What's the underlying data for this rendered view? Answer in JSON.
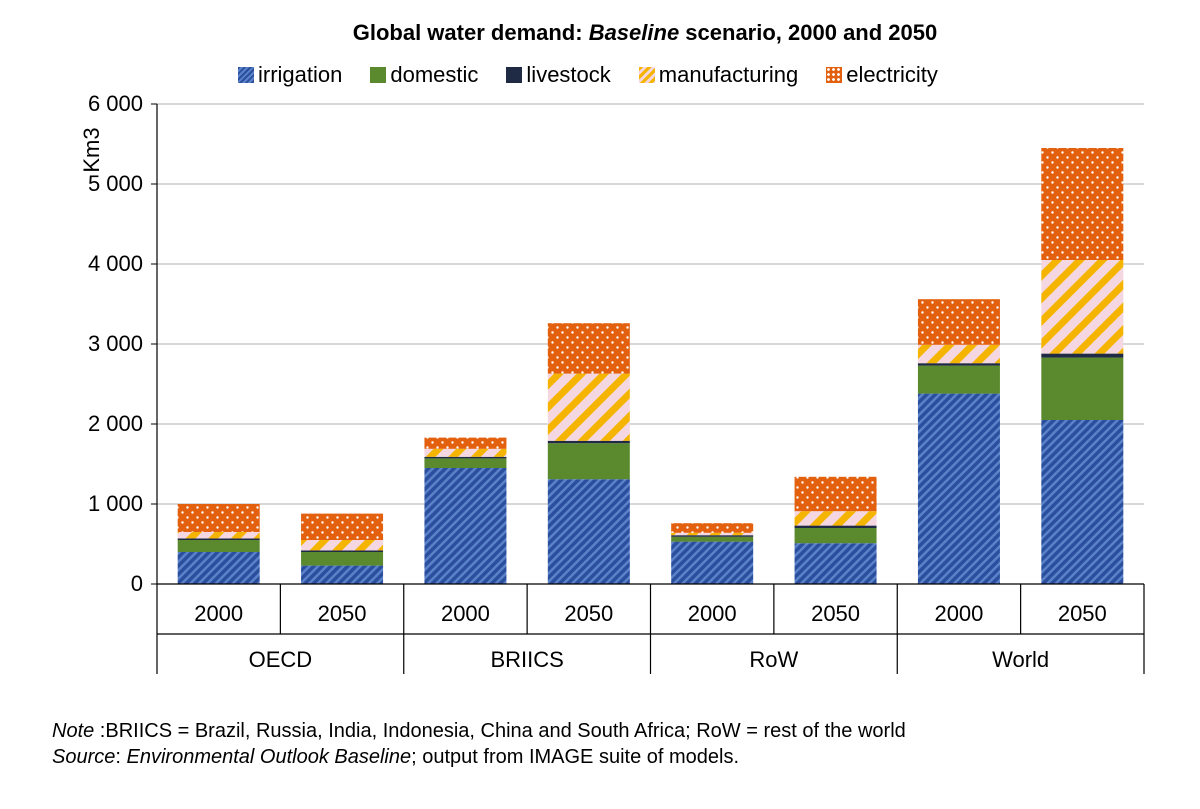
{
  "chart_data": {
    "type": "bar",
    "stacked": true,
    "title_parts": [
      "Global water demand: ",
      "Baseline",
      " scenario, 2000 and 2050"
    ],
    "ylabel": "Km3",
    "ylim": [
      0,
      6000
    ],
    "yticks": [
      0,
      1000,
      2000,
      3000,
      4000,
      5000,
      6000
    ],
    "ytick_labels": [
      "0",
      "1 000",
      "2 000",
      "3 000",
      "4 000",
      "5 000",
      "6 000"
    ],
    "grid": true,
    "legend_position": "top",
    "groups": [
      "OECD",
      "BRIICS",
      "RoW",
      "World"
    ],
    "categories": [
      "2000",
      "2050",
      "2000",
      "2050",
      "2000",
      "2050",
      "2000",
      "2050"
    ],
    "series": [
      {
        "name": "irrigation",
        "color": "#2b4f9e",
        "pattern": "diagonal-stripes",
        "values": [
          400,
          230,
          1450,
          1310,
          530,
          510,
          2380,
          2050
        ]
      },
      {
        "name": "domestic",
        "color": "#5b8a2e",
        "pattern": "solid",
        "values": [
          150,
          170,
          120,
          450,
          60,
          190,
          350,
          780
        ]
      },
      {
        "name": "livestock",
        "color": "#1f2a44",
        "pattern": "solid",
        "values": [
          20,
          20,
          20,
          30,
          20,
          30,
          30,
          50
        ]
      },
      {
        "name": "manufacturing",
        "color": "#f5b400",
        "pattern": "diagonal-stripes-pink",
        "values": [
          80,
          130,
          100,
          840,
          30,
          180,
          230,
          1170
        ]
      },
      {
        "name": "electricity",
        "color": "#e3600f",
        "pattern": "white-dots",
        "values": [
          350,
          330,
          140,
          630,
          120,
          430,
          570,
          1400
        ]
      }
    ]
  },
  "notes": {
    "note_label": "Note",
    "note_text": " :BRIICS = Brazil, Russia, India, Indonesia, China and South Africa; RoW = rest of the world",
    "source_label": "Source",
    "source_sep": ": ",
    "source_italic": "Environmental Outlook Baseline",
    "source_text": "; output from IMAGE suite of models."
  }
}
